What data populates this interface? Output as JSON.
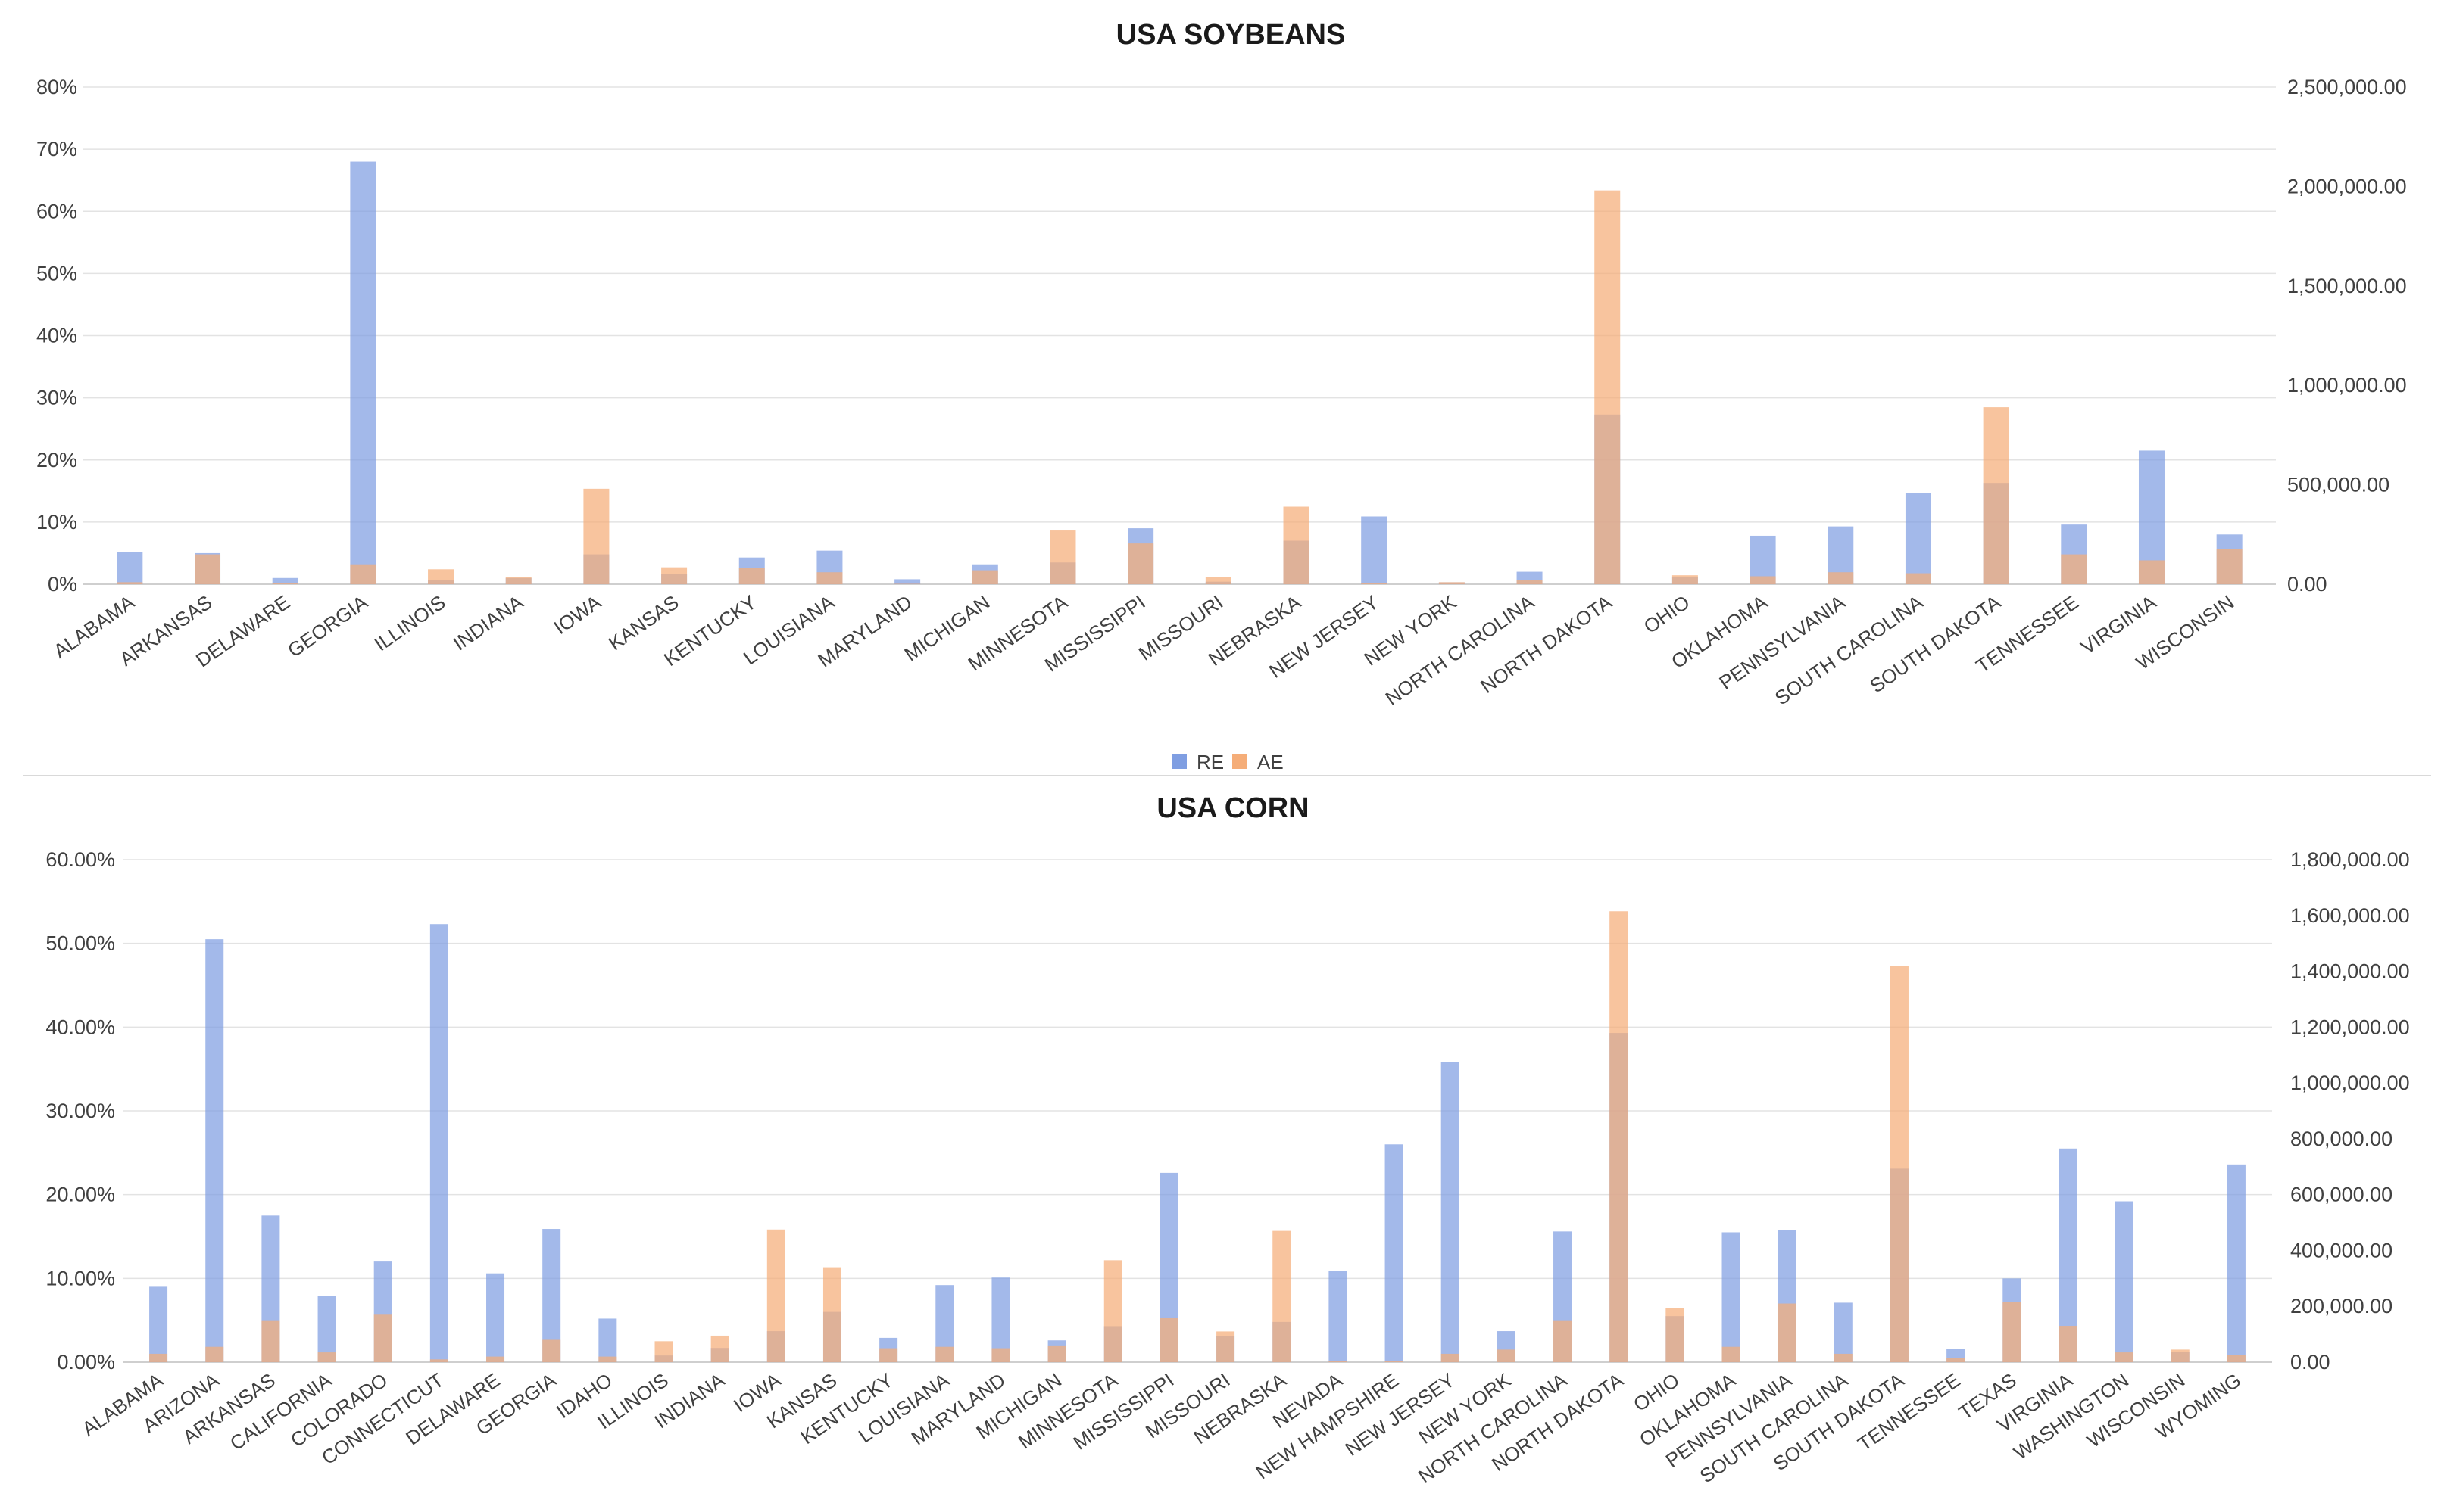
{
  "legend": {
    "items": [
      {
        "name": "RE",
        "color": "#7f9ee2"
      },
      {
        "name": "AE",
        "color": "#f5ad78"
      }
    ]
  },
  "chart_data": [
    {
      "type": "bar",
      "title": "USA SOYBEANS",
      "categories": [
        "ALABAMA",
        "ARKANSAS",
        "DELAWARE",
        "GEORGIA",
        "ILLINOIS",
        "INDIANA",
        "IOWA",
        "KANSAS",
        "KENTUCKY",
        "LOUISIANA",
        "MARYLAND",
        "MICHIGAN",
        "MINNESOTA",
        "MISSISSIPPI",
        "MISSOURI",
        "NEBRASKA",
        "NEW JERSEY",
        "NEW YORK",
        "NORTH CAROLINA",
        "NORTH DAKOTA",
        "OHIO",
        "OKLAHOMA",
        "PENNSYLVANIA",
        "SOUTH CAROLINA",
        "SOUTH DAKOTA",
        "TENNESSEE",
        "VIRGINIA",
        "WISCONSIN"
      ],
      "series": [
        {
          "name": "RE",
          "axis": "left",
          "unit": "%",
          "color": "#7f9ee2",
          "values": [
            5.2,
            5.0,
            1.0,
            68.0,
            0.7,
            1.0,
            4.8,
            1.7,
            4.3,
            5.4,
            0.8,
            3.2,
            3.5,
            9.0,
            0.4,
            7.0,
            10.9,
            0.3,
            2.0,
            27.3,
            1.1,
            7.8,
            9.3,
            14.7,
            16.3,
            9.6,
            21.5,
            8.0
          ]
        },
        {
          "name": "AE",
          "axis": "right",
          "unit": "",
          "color": "#f5ad78",
          "values": [
            10000,
            150000,
            5000,
            100000,
            75000,
            35000,
            480000,
            85000,
            80000,
            60000,
            2000,
            70000,
            270000,
            205000,
            35000,
            390000,
            5000,
            10000,
            20000,
            1980000,
            45000,
            40000,
            60000,
            55000,
            890000,
            150000,
            120000,
            175000
          ]
        }
      ],
      "y_left": {
        "min": 0,
        "max": 80,
        "ticks": [
          "0%",
          "10%",
          "20%",
          "30%",
          "40%",
          "50%",
          "60%",
          "70%",
          "80%"
        ]
      },
      "y_right": {
        "min": 0,
        "max": 2500000,
        "ticks": [
          "0.00",
          "500,000.00",
          "1,000,000.00",
          "1,500,000.00",
          "2,000,000.00",
          "2,500,000.00"
        ]
      },
      "grid": true,
      "legend_position": "bottom-center"
    },
    {
      "type": "bar",
      "title": "USA CORN",
      "categories": [
        "ALABAMA",
        "ARIZONA",
        "ARKANSAS",
        "CALIFORNIA",
        "COLORADO",
        "CONNECTICUT",
        "DELAWARE",
        "GEORGIA",
        "IDAHO",
        "ILLINOIS",
        "INDIANA",
        "IOWA",
        "KANSAS",
        "KENTUCKY",
        "LOUISIANA",
        "MARYLAND",
        "MICHIGAN",
        "MINNESOTA",
        "MISSISSIPPI",
        "MISSOURI",
        "NEBRASKA",
        "NEVADA",
        "NEW HAMPSHIRE",
        "NEW JERSEY",
        "NEW YORK",
        "NORTH CAROLINA",
        "NORTH DAKOTA",
        "OHIO",
        "OKLAHOMA",
        "PENNSYLVANIA",
        "SOUTH CAROLINA",
        "SOUTH DAKOTA",
        "TENNESSEE",
        "TEXAS",
        "VIRGINIA",
        "WASHINGTON",
        "WISCONSIN",
        "WYOMING"
      ],
      "series": [
        {
          "name": "RE",
          "axis": "left",
          "unit": "%",
          "color": "#7f9ee2",
          "values": [
            9.0,
            50.5,
            17.5,
            7.9,
            12.1,
            52.3,
            10.6,
            15.9,
            5.2,
            0.8,
            1.7,
            3.7,
            6.0,
            2.9,
            9.2,
            10.1,
            2.6,
            4.3,
            22.6,
            3.1,
            4.8,
            10.9,
            26.0,
            35.8,
            3.7,
            15.6,
            39.3,
            5.5,
            15.5,
            15.8,
            7.1,
            23.1,
            1.6,
            10.0,
            25.5,
            19.2,
            1.2,
            23.6
          ]
        },
        {
          "name": "AE",
          "axis": "right",
          "unit": "",
          "color": "#f5ad78",
          "values": [
            30000,
            55000,
            150000,
            35000,
            170000,
            10000,
            20000,
            80000,
            20000,
            75000,
            95000,
            475000,
            340000,
            50000,
            55000,
            50000,
            60000,
            365000,
            160000,
            110000,
            470000,
            5000,
            5000,
            30000,
            45000,
            150000,
            1615000,
            195000,
            55000,
            210000,
            30000,
            1420000,
            15000,
            215000,
            130000,
            35000,
            45000,
            25000
          ]
        }
      ],
      "y_left": {
        "min": 0,
        "max": 60,
        "ticks": [
          "0.00%",
          "10.00%",
          "20.00%",
          "30.00%",
          "40.00%",
          "50.00%",
          "60.00%"
        ]
      },
      "y_right": {
        "min": 0,
        "max": 1800000,
        "ticks": [
          "0.00",
          "200,000.00",
          "400,000.00",
          "600,000.00",
          "800,000.00",
          "1,000,000.00",
          "1,200,000.00",
          "1,400,000.00",
          "1,600,000.00",
          "1,800,000.00"
        ]
      },
      "grid": true
    }
  ]
}
